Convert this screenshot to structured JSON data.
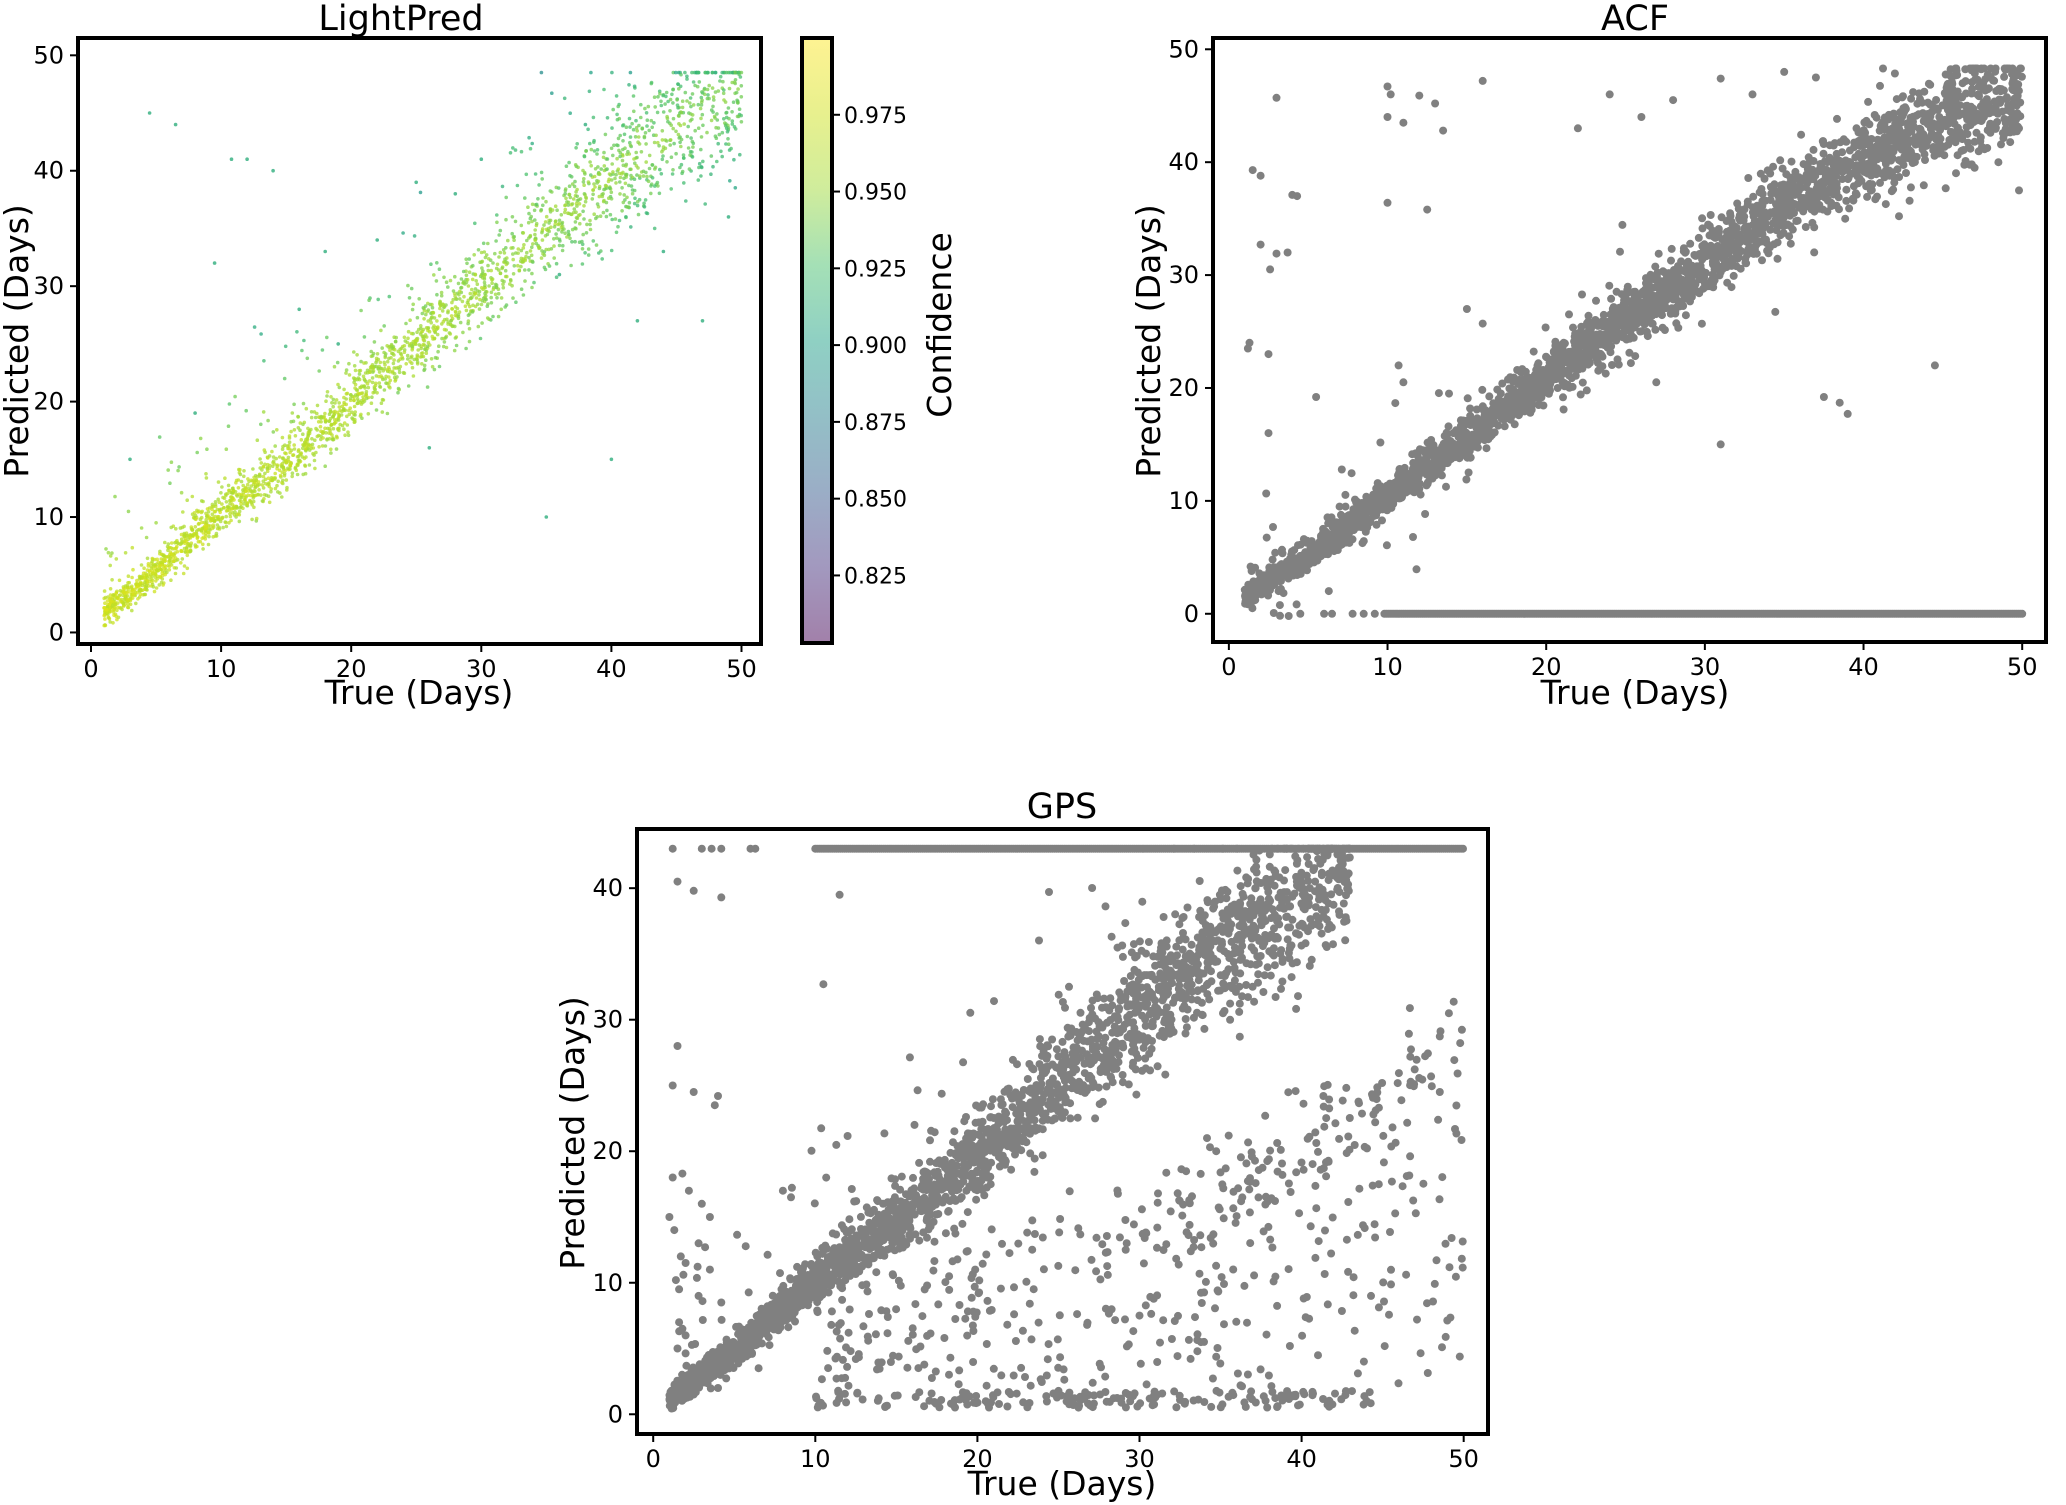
{
  "figure": {
    "description_note": "Three scatter panels comparing predicted vs true rotation period"
  },
  "chart_data": [
    {
      "id": "lightpred",
      "type": "scatter",
      "title": "LightPred",
      "xlabel": "True (Days)",
      "ylabel": "Predicted (Days)",
      "xlim": [
        -1,
        51.5
      ],
      "ylim": [
        -1,
        51.5
      ],
      "xticks": [
        0,
        10,
        20,
        30,
        40,
        50
      ],
      "yticks": [
        0,
        10,
        20,
        30,
        40,
        50
      ],
      "xtick_labels": [
        "0",
        "10",
        "20",
        "30",
        "40",
        "50"
      ],
      "ytick_labels": [
        "0",
        "10",
        "20",
        "30",
        "40",
        "50"
      ],
      "grid": false,
      "marker_size": "small",
      "color_by": "confidence",
      "colormap": "viridis",
      "colorbar": {
        "label": "Confidence",
        "range": [
          0.803,
          1.0
        ],
        "ticks": [
          0.825,
          0.85,
          0.875,
          0.9,
          0.925,
          0.95,
          0.975
        ],
        "tick_labels": [
          "0.825",
          "0.850",
          "0.875",
          "0.900",
          "0.925",
          "0.950",
          "0.975"
        ],
        "alpha": 0.5
      },
      "trend": [
        [
          1,
          1.8
        ],
        [
          5,
          5.2
        ],
        [
          10,
          10.5
        ],
        [
          15,
          14.5
        ],
        [
          20,
          19.8
        ],
        [
          25,
          25.0
        ],
        [
          30,
          29.8
        ],
        [
          35,
          35.0
        ],
        [
          40,
          39.5
        ],
        [
          45,
          43.8
        ],
        [
          50,
          46.5
        ]
      ],
      "outliers": [
        [
          3,
          15
        ],
        [
          4.5,
          45
        ],
        [
          6.5,
          44
        ],
        [
          8,
          19
        ],
        [
          9.5,
          32
        ],
        [
          10.8,
          41
        ],
        [
          12,
          41
        ],
        [
          14,
          40
        ],
        [
          16,
          28
        ],
        [
          18,
          33
        ],
        [
          22,
          34
        ],
        [
          25,
          39
        ],
        [
          28,
          38
        ],
        [
          30,
          41
        ],
        [
          35,
          10
        ],
        [
          36,
          31
        ],
        [
          38,
          44
        ],
        [
          40,
          15
        ],
        [
          42,
          27
        ],
        [
          44,
          33
        ],
        [
          47,
          27
        ],
        [
          49,
          36
        ],
        [
          19,
          25
        ],
        [
          26,
          16
        ]
      ]
    },
    {
      "id": "acf",
      "type": "scatter",
      "title": "ACF",
      "xlabel": "True (Days)",
      "ylabel": "Predicted (Days)",
      "xlim": [
        -1,
        51.5
      ],
      "ylim": [
        -2.5,
        51
      ],
      "xticks": [
        0,
        10,
        20,
        30,
        40,
        50
      ],
      "yticks": [
        0,
        10,
        20,
        30,
        40,
        50
      ],
      "xtick_labels": [
        "0",
        "10",
        "20",
        "30",
        "40",
        "50"
      ],
      "ytick_labels": [
        "0",
        "10",
        "20",
        "30",
        "40",
        "50"
      ],
      "grid": false,
      "marker_color": "#808080",
      "zero_band": {
        "x_start": 9.8,
        "x_end": 50,
        "y": 0
      },
      "trend": [
        [
          1,
          1.5
        ],
        [
          5,
          5.2
        ],
        [
          10,
          10.5
        ],
        [
          15,
          15.5
        ],
        [
          20,
          21
        ],
        [
          25,
          26
        ],
        [
          30,
          31
        ],
        [
          35,
          36
        ],
        [
          40,
          40.5
        ],
        [
          45,
          44
        ],
        [
          50,
          46
        ]
      ],
      "outliers": [
        [
          3,
          45.7
        ],
        [
          1.5,
          39.3
        ],
        [
          2,
          38.8
        ],
        [
          4,
          37.1
        ],
        [
          4.3,
          37
        ],
        [
          2,
          32.7
        ],
        [
          3,
          31.9
        ],
        [
          2.6,
          30.5
        ],
        [
          3.7,
          32
        ],
        [
          1.3,
          24
        ],
        [
          1.2,
          23.5
        ],
        [
          2.5,
          23
        ],
        [
          5.5,
          19.2
        ],
        [
          2.5,
          16
        ],
        [
          10,
          46.7
        ],
        [
          10.2,
          46
        ],
        [
          10,
          44
        ],
        [
          11,
          43.5
        ],
        [
          12,
          45.9
        ],
        [
          13,
          45.2
        ],
        [
          13.5,
          42.8
        ],
        [
          16,
          47.2
        ],
        [
          10,
          36.4
        ],
        [
          12.5,
          35.8
        ],
        [
          15,
          27
        ],
        [
          16,
          25.7
        ],
        [
          11,
          20.5
        ],
        [
          10.7,
          22
        ],
        [
          19,
          17.8
        ],
        [
          22,
          43
        ],
        [
          24,
          46
        ],
        [
          26,
          44
        ],
        [
          28,
          45.5
        ],
        [
          31,
          47.4
        ],
        [
          33,
          46
        ],
        [
          35,
          48
        ],
        [
          37,
          47.5
        ],
        [
          31,
          15
        ],
        [
          37.5,
          19.2
        ],
        [
          38.5,
          18.7
        ],
        [
          39,
          17.7
        ],
        [
          44.5,
          22
        ],
        [
          49.8,
          37.5
        ],
        [
          48.5,
          40
        ],
        [
          47,
          39.5
        ]
      ]
    },
    {
      "id": "gps",
      "type": "scatter",
      "title": "GPS",
      "xlabel": "True (Days)",
      "ylabel": "Predicted (Days)",
      "xlim": [
        -1,
        51.5
      ],
      "ylim": [
        -1.5,
        44.5
      ],
      "xticks": [
        0,
        10,
        20,
        30,
        40,
        50
      ],
      "yticks": [
        0,
        10,
        20,
        30,
        40
      ],
      "xtick_labels": [
        "0",
        "10",
        "20",
        "30",
        "40",
        "50"
      ],
      "ytick_labels": [
        "0",
        "10",
        "20",
        "30",
        "40"
      ],
      "grid": false,
      "marker_color": "#808080",
      "cap_band": {
        "x_start": 10,
        "x_end": 50,
        "y": 43
      },
      "cap_left_points": [
        1.2,
        3,
        3.6,
        4.2,
        6,
        6.3
      ],
      "trend": [
        [
          1,
          1.2
        ],
        [
          5,
          4.8
        ],
        [
          10,
          10.3
        ],
        [
          15,
          14.8
        ],
        [
          20,
          19.5
        ],
        [
          25,
          25
        ],
        [
          30,
          30.5
        ],
        [
          35,
          35.5
        ],
        [
          40,
          39.5
        ],
        [
          42,
          41.5
        ]
      ],
      "low_band": {
        "x_start": 10,
        "x_end": 45,
        "y_range": [
          0.5,
          1.8
        ]
      },
      "scatter_region": {
        "x_range": [
          10,
          50
        ],
        "y_range": [
          2,
          28
        ]
      },
      "left_outliers": [
        [
          1.5,
          40.5
        ],
        [
          2.5,
          39.8
        ],
        [
          4.2,
          39.3
        ],
        [
          1.5,
          28
        ],
        [
          1.2,
          25
        ],
        [
          2.5,
          24.5
        ],
        [
          4,
          24.2
        ],
        [
          3.8,
          23.5
        ],
        [
          1.2,
          18
        ],
        [
          1.8,
          18.3
        ],
        [
          2.2,
          17
        ],
        [
          3,
          16
        ],
        [
          3.5,
          15
        ],
        [
          1,
          15
        ],
        [
          1.3,
          14
        ],
        [
          2.8,
          13
        ],
        [
          3.2,
          12.7
        ],
        [
          1.7,
          12
        ],
        [
          2,
          11.5
        ],
        [
          3.5,
          11
        ],
        [
          1.4,
          10.2
        ],
        [
          1.6,
          9.5
        ],
        [
          2.8,
          9
        ],
        [
          4.2,
          8.5
        ],
        [
          1.6,
          7
        ],
        [
          1.8,
          6.5
        ],
        [
          2,
          6
        ],
        [
          1.5,
          5
        ],
        [
          3,
          3.2
        ],
        [
          4,
          2
        ],
        [
          2.5,
          1.5
        ],
        [
          6.5,
          3.5
        ],
        [
          8,
          17
        ],
        [
          8.5,
          16.5
        ],
        [
          11.5,
          39.5
        ],
        [
          10.5,
          32.7
        ]
      ]
    }
  ]
}
